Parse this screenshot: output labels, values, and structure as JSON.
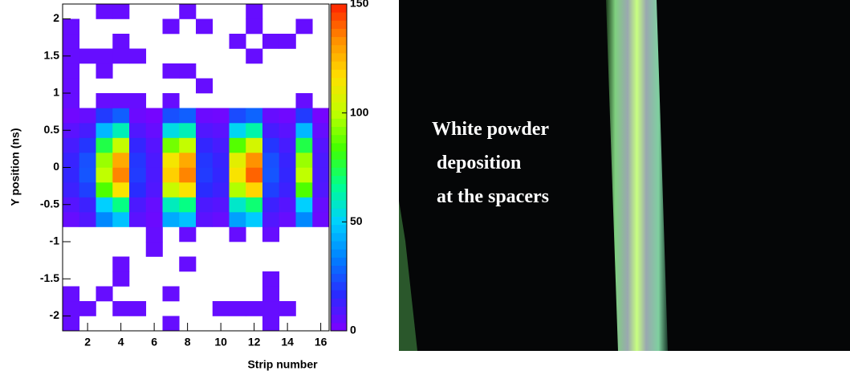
{
  "chart_data": {
    "type": "heatmap",
    "x_label": "Strip number",
    "y_label": "Y position (ns)",
    "xlim": [
      0.5,
      16.5
    ],
    "ylim": [
      -2.2,
      2.2
    ],
    "zlim": [
      0,
      150
    ],
    "xticks": [
      2,
      4,
      6,
      8,
      10,
      12,
      14,
      16
    ],
    "yticks": [
      -2,
      -1.5,
      -1,
      -0.5,
      0,
      0.5,
      1,
      1.5,
      2
    ],
    "zticks": [
      0,
      50,
      100,
      150
    ],
    "colors": [
      "#7f00ff",
      "#2a2aff",
      "#0080ff",
      "#00d0ff",
      "#00ff90",
      "#40ff00",
      "#c0ff00",
      "#ffe000",
      "#ff9000",
      "#ff2000"
    ],
    "z": [
      [
        5,
        null,
        null,
        null,
        null,
        null,
        5,
        null,
        null,
        null,
        null,
        null,
        5,
        null,
        null,
        null
      ],
      [
        5,
        5,
        null,
        5,
        5,
        null,
        null,
        null,
        null,
        5,
        5,
        5,
        5,
        5,
        null,
        null
      ],
      [
        5,
        null,
        5,
        null,
        null,
        null,
        5,
        null,
        null,
        null,
        null,
        null,
        5,
        null,
        null,
        null
      ],
      [
        null,
        null,
        null,
        5,
        null,
        null,
        null,
        null,
        null,
        null,
        null,
        null,
        5,
        null,
        null,
        null
      ],
      [
        null,
        null,
        null,
        5,
        null,
        null,
        null,
        5,
        null,
        null,
        null,
        null,
        null,
        null,
        null,
        null
      ],
      [
        null,
        null,
        null,
        null,
        null,
        5,
        null,
        null,
        null,
        null,
        null,
        null,
        null,
        null,
        null,
        null
      ],
      [
        null,
        null,
        null,
        null,
        null,
        5,
        null,
        5,
        null,
        null,
        5,
        null,
        5,
        null,
        null,
        null
      ],
      [
        5,
        9,
        35,
        47,
        7,
        4,
        42,
        47,
        7,
        5,
        40,
        49,
        9,
        5,
        35,
        4
      ],
      [
        8,
        13,
        50,
        68,
        10,
        5,
        60,
        68,
        10,
        8,
        58,
        70,
        13,
        8,
        50,
        5
      ],
      [
        13,
        21,
        85,
        115,
        17,
        9,
        102,
        115,
        17,
        13,
        98,
        119,
        21,
        13,
        85,
        9
      ],
      [
        15,
        25,
        100,
        135,
        20,
        10,
        120,
        135,
        20,
        15,
        115,
        140,
        25,
        15,
        100,
        10
      ],
      [
        14,
        24,
        95,
        128,
        19,
        10,
        114,
        128,
        19,
        14,
        109,
        133,
        24,
        14,
        95,
        10
      ],
      [
        11,
        19,
        75,
        101,
        15,
        8,
        90,
        101,
        15,
        11,
        86,
        105,
        19,
        11,
        75,
        8
      ],
      [
        7,
        11,
        45,
        61,
        9,
        5,
        54,
        61,
        9,
        7,
        52,
        63,
        11,
        7,
        45,
        5
      ],
      [
        3,
        5,
        20,
        27,
        4,
        2,
        24,
        27,
        4,
        3,
        23,
        28,
        5,
        3,
        20,
        2
      ],
      [
        5,
        null,
        5,
        5,
        5,
        null,
        5,
        null,
        null,
        null,
        null,
        null,
        null,
        null,
        5,
        null
      ],
      [
        5,
        null,
        null,
        null,
        null,
        null,
        null,
        null,
        5,
        null,
        null,
        null,
        null,
        null,
        null,
        null
      ],
      [
        5,
        null,
        5,
        null,
        null,
        null,
        5,
        5,
        null,
        null,
        null,
        null,
        null,
        null,
        null,
        null
      ],
      [
        5,
        5,
        5,
        5,
        5,
        null,
        null,
        null,
        null,
        null,
        null,
        5,
        null,
        null,
        null,
        null
      ],
      [
        5,
        null,
        null,
        5,
        null,
        null,
        null,
        null,
        null,
        null,
        5,
        null,
        5,
        5,
        null,
        null
      ],
      [
        5,
        null,
        null,
        null,
        null,
        null,
        5,
        null,
        5,
        null,
        null,
        5,
        null,
        null,
        5,
        null
      ],
      [
        null,
        null,
        5,
        5,
        null,
        null,
        null,
        5,
        null,
        null,
        null,
        5,
        null,
        null,
        null,
        null
      ]
    ]
  },
  "photo": {
    "text_lines": [
      "White powder",
      "deposition",
      "at the spacers"
    ]
  }
}
